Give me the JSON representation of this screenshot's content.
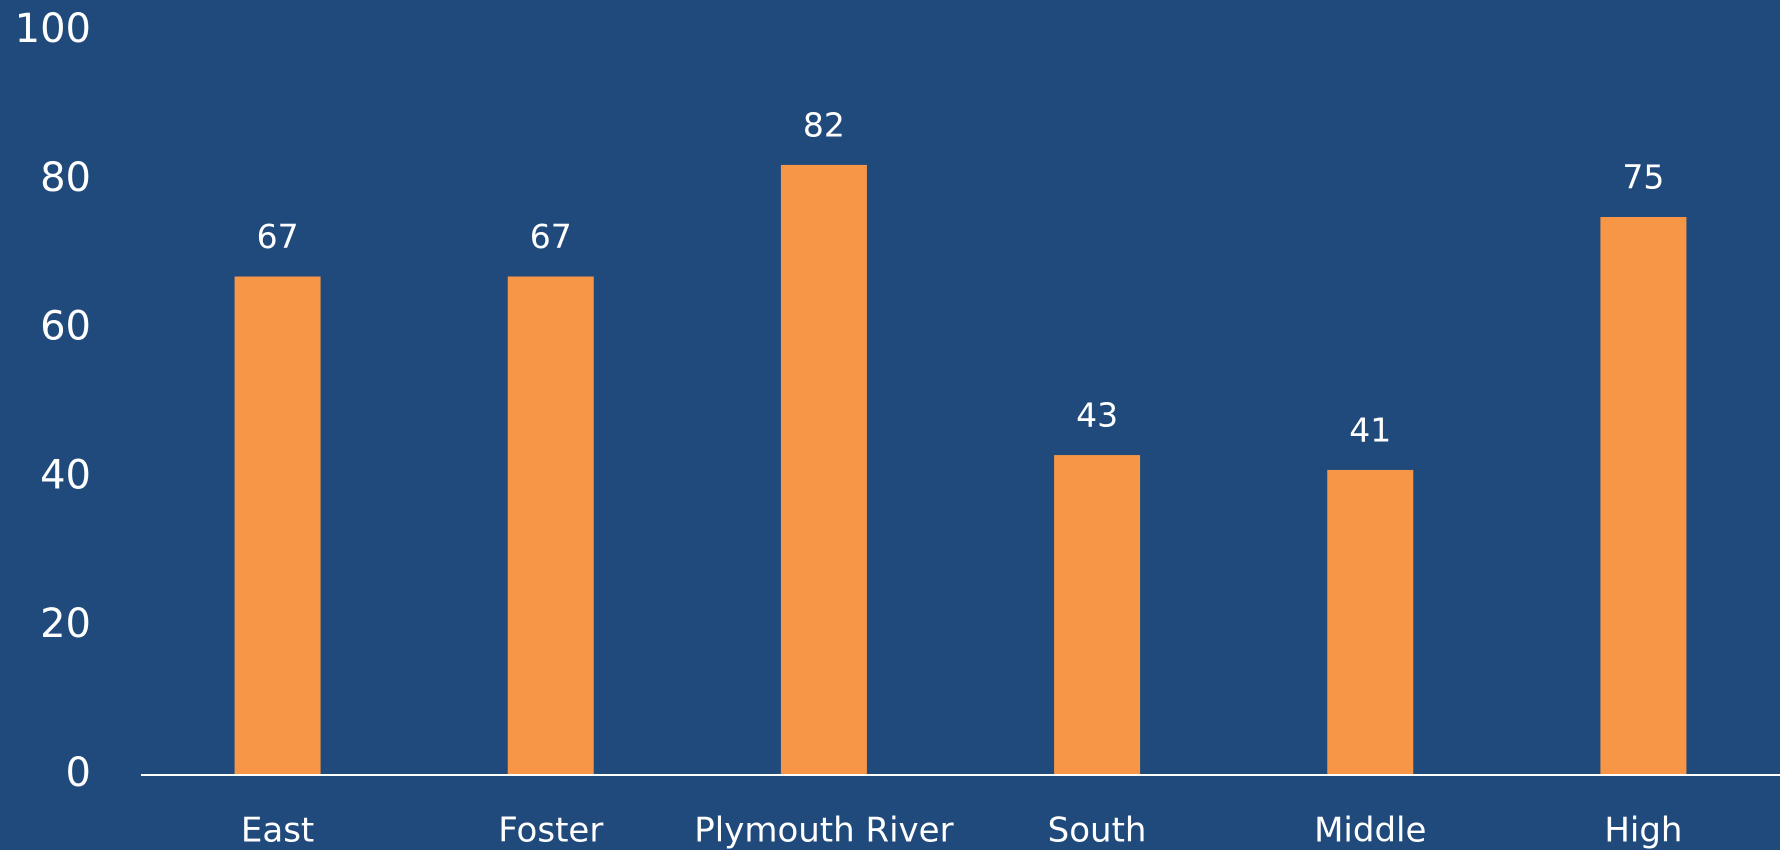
{
  "chart_data": {
    "type": "bar",
    "categories": [
      "East",
      "Foster",
      "Plymouth River",
      "South",
      "Middle",
      "High"
    ],
    "values": [
      67,
      67,
      82,
      43,
      41,
      75
    ],
    "color": "#f79646",
    "ylim": [
      0,
      100
    ],
    "yticks": [
      0,
      20,
      40,
      60,
      80,
      100
    ],
    "grid": false
  }
}
